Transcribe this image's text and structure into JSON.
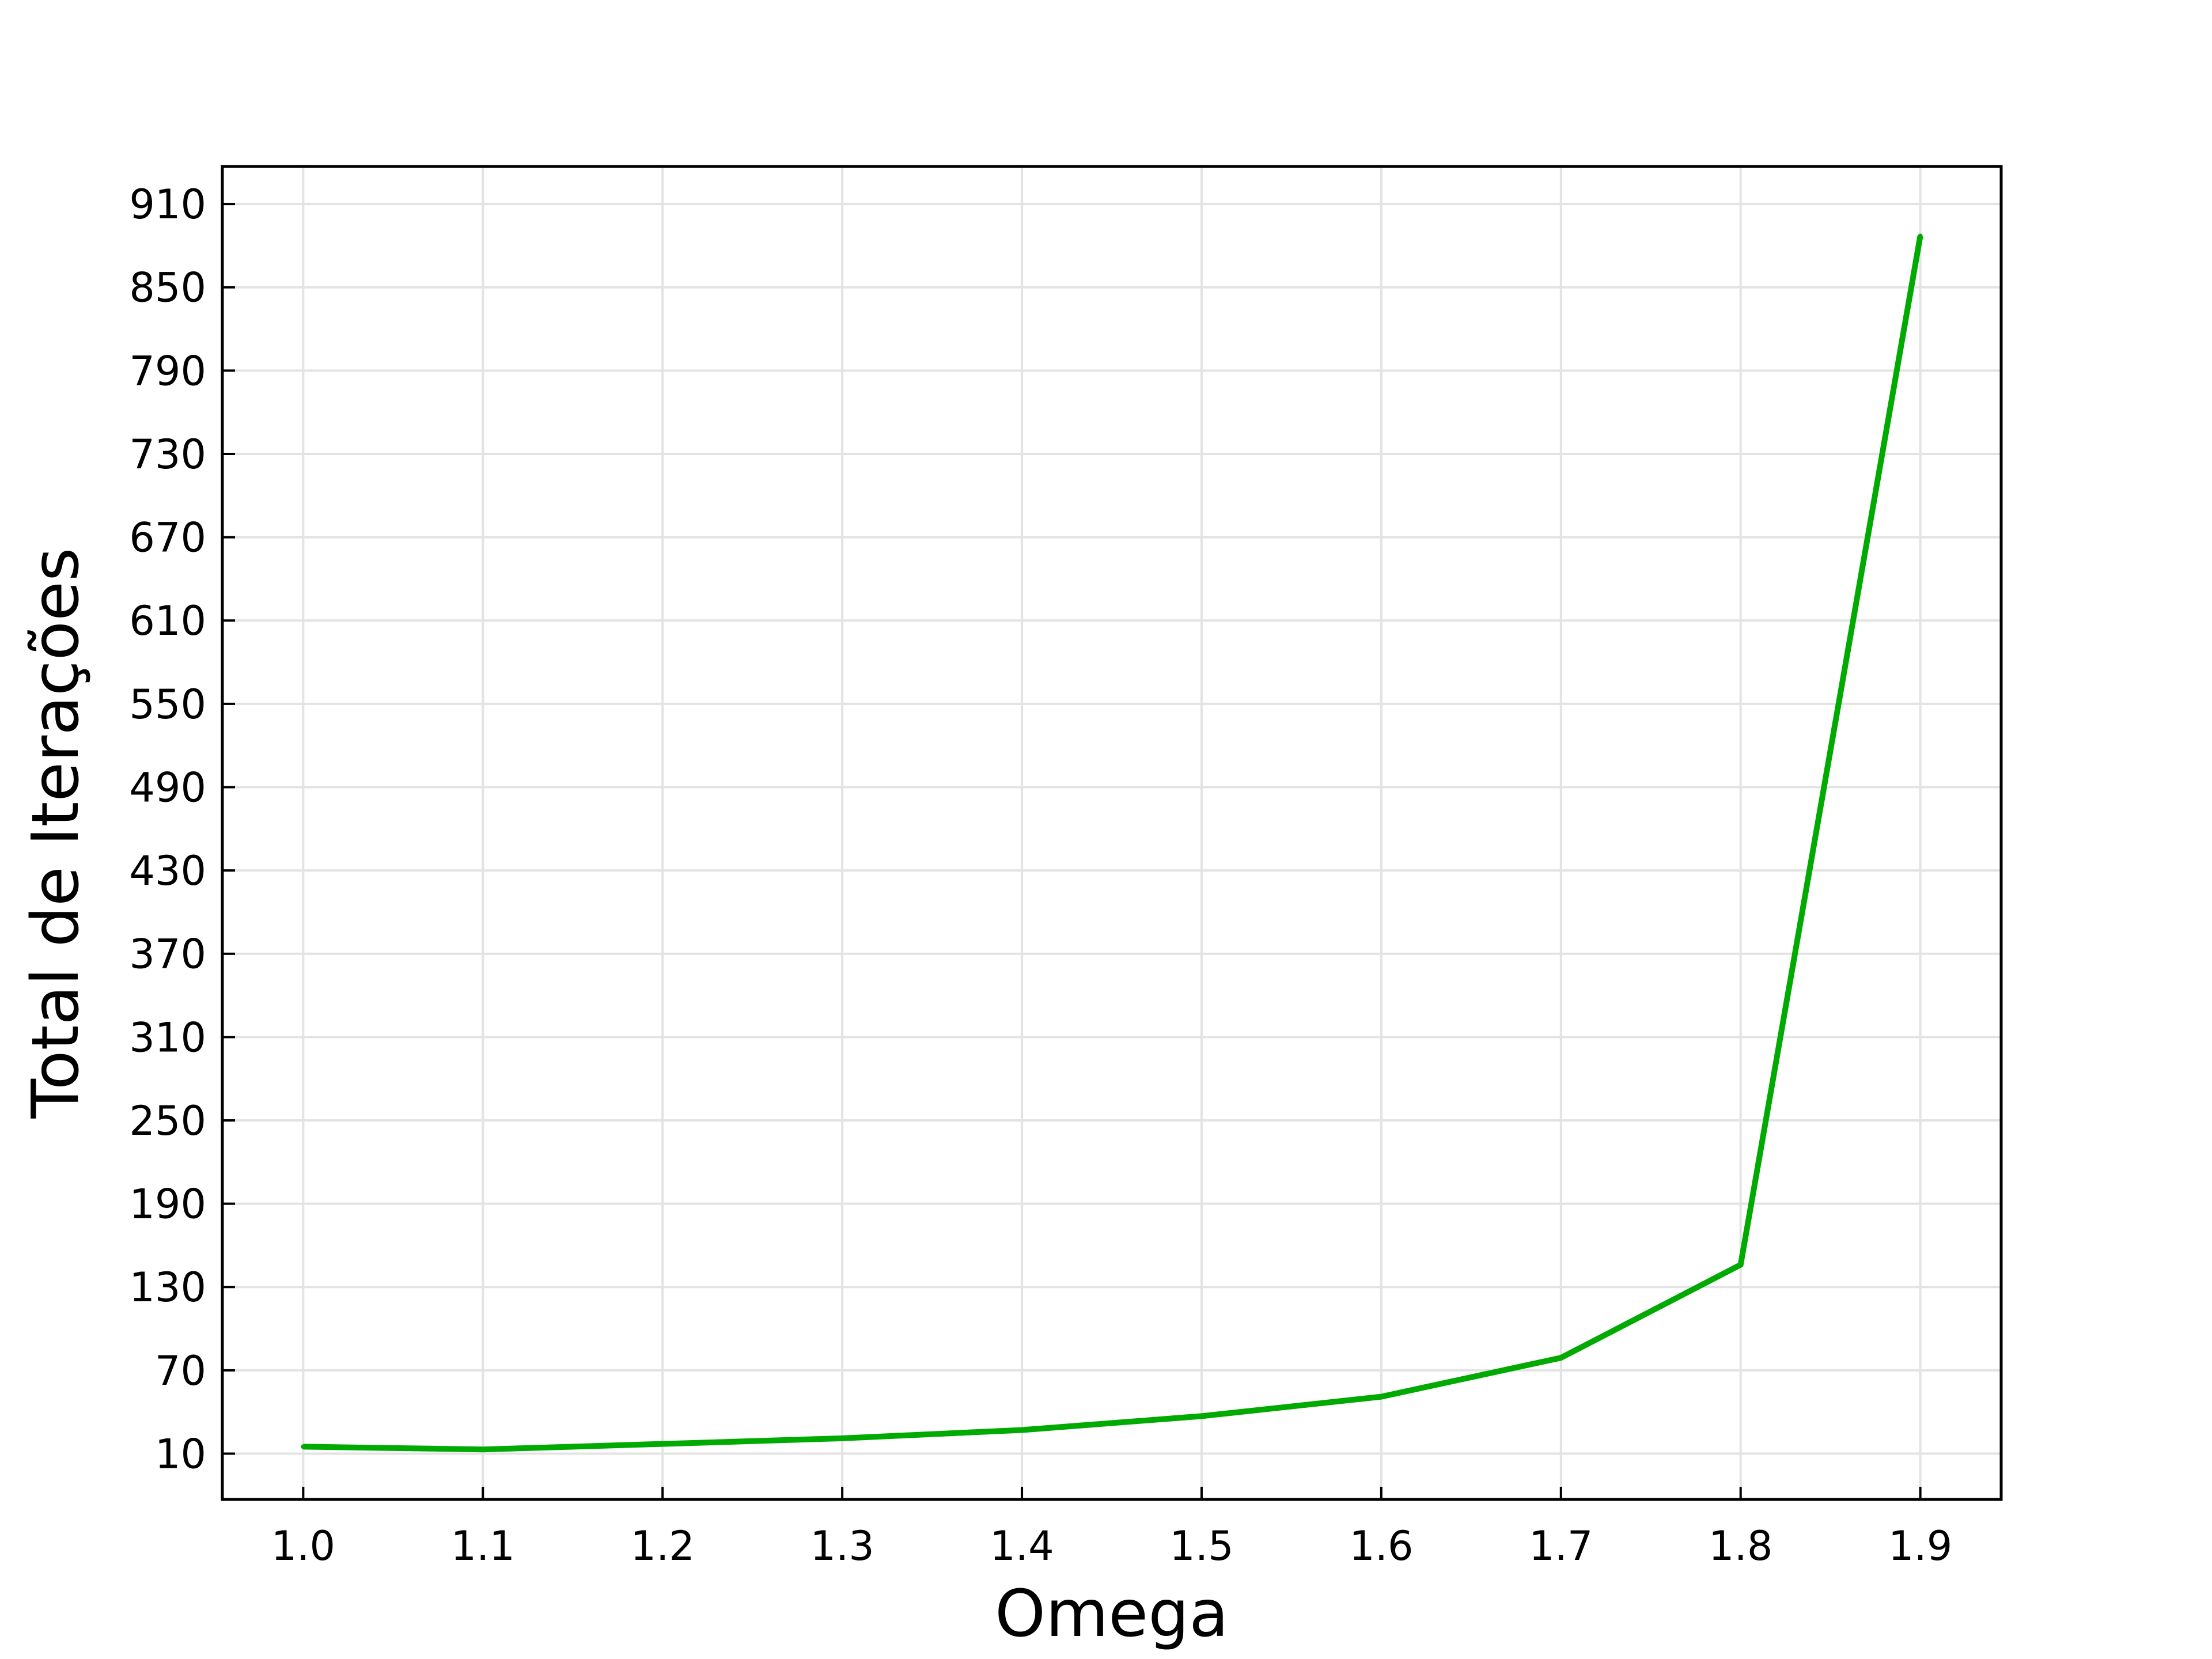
{
  "chart_data": {
    "type": "line",
    "title": "",
    "xlabel": "Omega",
    "ylabel": "Total de Iterações",
    "xlim": [
      0.955,
      1.945
    ],
    "ylim": [
      -23,
      937
    ],
    "x_ticks": [
      "1.0",
      "1.1",
      "1.2",
      "1.3",
      "1.4",
      "1.5",
      "1.6",
      "1.7",
      "1.8",
      "1.9"
    ],
    "y_ticks": [
      "10",
      "70",
      "130",
      "190",
      "250",
      "310",
      "370",
      "430",
      "490",
      "550",
      "610",
      "670",
      "730",
      "790",
      "850",
      "910"
    ],
    "grid": true,
    "legend": "none",
    "series": [
      {
        "color": "#00aa00",
        "x": [
          1.0,
          1.1,
          1.2,
          1.3,
          1.4,
          1.5,
          1.6,
          1.7,
          1.8,
          1.9
        ],
        "y": [
          15,
          13,
          17,
          21,
          27,
          37,
          51,
          79,
          146,
          887
        ]
      }
    ]
  }
}
